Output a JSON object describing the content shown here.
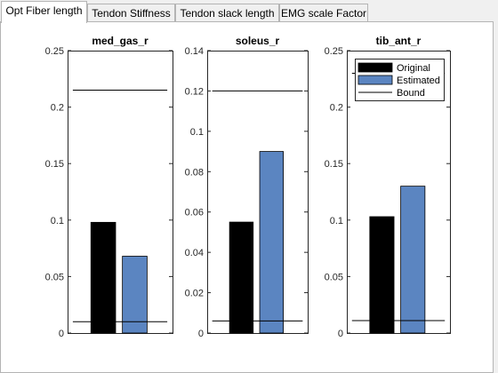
{
  "tabs": [
    {
      "label": "Opt Fiber length",
      "active": true
    },
    {
      "label": "Tendon Stiffness",
      "active": false
    },
    {
      "label": "Tendon slack length",
      "active": false
    },
    {
      "label": "EMG scale Factor",
      "active": false
    }
  ],
  "colors": {
    "original": "#000000",
    "estimated": "#5b85c1",
    "bound": "#000000"
  },
  "legend": {
    "placement": "top-right of third chart",
    "items": [
      {
        "label": "Original"
      },
      {
        "label": "Estimated"
      },
      {
        "label": "Bound"
      }
    ]
  },
  "chart_data": [
    {
      "type": "bar",
      "title": "med_gas_r",
      "ylim": [
        0,
        0.25
      ],
      "yticks": [
        "0",
        "0.05",
        "0.1",
        "0.15",
        "0.2",
        "0.25"
      ],
      "ytick_values": [
        0,
        0.05,
        0.1,
        0.15,
        0.2,
        0.25
      ],
      "series": [
        {
          "name": "Original",
          "values": [
            0.098
          ]
        },
        {
          "name": "Estimated",
          "values": [
            0.068
          ]
        }
      ],
      "bounds": [
        0.215,
        0.01
      ]
    },
    {
      "type": "bar",
      "title": "soleus_r",
      "ylim": [
        0,
        0.14
      ],
      "yticks": [
        "0",
        "0.02",
        "0.04",
        "0.06",
        "0.08",
        "0.1",
        "0.12",
        "0.14"
      ],
      "ytick_values": [
        0,
        0.02,
        0.04,
        0.06,
        0.08,
        0.1,
        0.12,
        0.14
      ],
      "series": [
        {
          "name": "Original",
          "values": [
            0.055
          ]
        },
        {
          "name": "Estimated",
          "values": [
            0.09
          ]
        }
      ],
      "bounds": [
        0.12,
        0.006
      ]
    },
    {
      "type": "bar",
      "title": "tib_ant_r",
      "ylim": [
        0,
        0.25
      ],
      "yticks": [
        "0",
        "0.05",
        "0.1",
        "0.15",
        "0.2",
        "0.25"
      ],
      "ytick_values": [
        0,
        0.05,
        0.1,
        0.15,
        0.2,
        0.25
      ],
      "series": [
        {
          "name": "Original",
          "values": [
            0.103
          ]
        },
        {
          "name": "Estimated",
          "values": [
            0.13
          ]
        }
      ],
      "bounds": [
        0.23,
        0.011
      ]
    }
  ]
}
